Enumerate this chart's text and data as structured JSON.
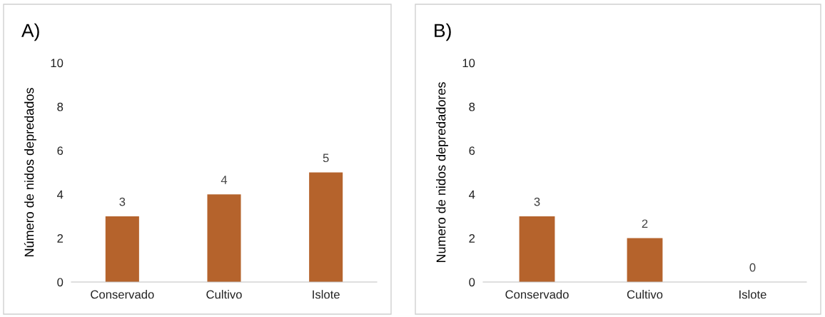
{
  "chart_data": [
    {
      "type": "bar",
      "title": "A)",
      "ylabel": "Número de nidos depredados",
      "categories": [
        "Conservado",
        "Cultivo",
        "Islote"
      ],
      "values": [
        3,
        4,
        5
      ],
      "color": "#b5632c",
      "ylim": [
        0,
        10
      ],
      "yticks": [
        0,
        2,
        4,
        6,
        8,
        10
      ],
      "data_labels": true,
      "grid": false,
      "legend": false
    },
    {
      "type": "bar",
      "title": "B)",
      "ylabel": "Numero de nidos depredadores",
      "categories": [
        "Conservado",
        "Cultivo",
        "Islote"
      ],
      "values": [
        3,
        2,
        0
      ],
      "color": "#b5632c",
      "ylim": [
        0,
        10
      ],
      "yticks": [
        0,
        2,
        4,
        6,
        8,
        10
      ],
      "data_labels": true,
      "grid": false,
      "legend": false
    }
  ]
}
